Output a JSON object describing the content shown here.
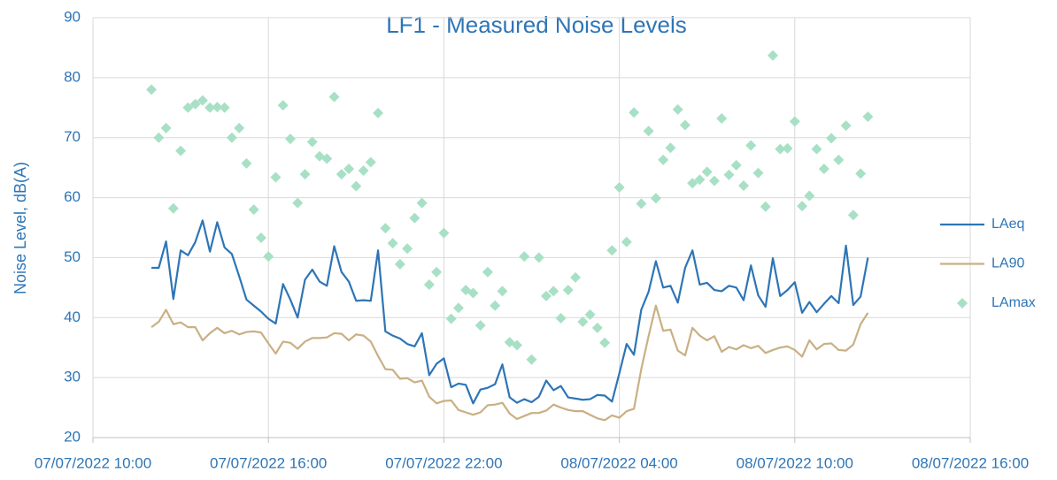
{
  "chart_data": {
    "type": "line",
    "title": "LF1 - Measured Noise Levels",
    "y_label": "Noise Level, dB(A)",
    "ylim": [
      20,
      90
    ],
    "yticks": [
      20,
      30,
      40,
      50,
      60,
      70,
      80,
      90
    ],
    "xlim": [
      "07/07/2022 10:00",
      "08/07/2022 16:00"
    ],
    "xticks": [
      "07/07/2022 10:00",
      "07/07/2022 16:00",
      "07/07/2022 22:00",
      "08/07/2022 04:00",
      "08/07/2022 10:00",
      "08/07/2022 16:00"
    ],
    "grid": true,
    "legend": "right",
    "x": [
      "07/07/2022 12:00",
      "07/07/2022 12:15",
      "07/07/2022 12:30",
      "07/07/2022 12:45",
      "07/07/2022 13:00",
      "07/07/2022 13:15",
      "07/07/2022 13:30",
      "07/07/2022 13:45",
      "07/07/2022 14:00",
      "07/07/2022 14:15",
      "07/07/2022 14:30",
      "07/07/2022 14:45",
      "07/07/2022 15:00",
      "07/07/2022 15:15",
      "07/07/2022 15:30",
      "07/07/2022 15:45",
      "07/07/2022 16:00",
      "07/07/2022 16:15",
      "07/07/2022 16:30",
      "07/07/2022 16:45",
      "07/07/2022 17:00",
      "07/07/2022 17:15",
      "07/07/2022 17:30",
      "07/07/2022 17:45",
      "07/07/2022 18:00",
      "07/07/2022 18:15",
      "07/07/2022 18:30",
      "07/07/2022 18:45",
      "07/07/2022 19:00",
      "07/07/2022 19:15",
      "07/07/2022 19:30",
      "07/07/2022 19:45",
      "07/07/2022 20:00",
      "07/07/2022 20:15",
      "07/07/2022 20:30",
      "07/07/2022 20:45",
      "07/07/2022 21:00",
      "07/07/2022 21:15",
      "07/07/2022 21:30",
      "07/07/2022 21:45",
      "07/07/2022 22:00",
      "07/07/2022 22:15",
      "07/07/2022 22:30",
      "07/07/2022 22:45",
      "07/07/2022 23:00",
      "07/07/2022 23:15",
      "07/07/2022 23:30",
      "07/07/2022 23:45",
      "08/07/2022 00:00",
      "08/07/2022 00:15",
      "08/07/2022 00:30",
      "08/07/2022 00:45",
      "08/07/2022 01:00",
      "08/07/2022 01:15",
      "08/07/2022 01:30",
      "08/07/2022 01:45",
      "08/07/2022 02:00",
      "08/07/2022 02:15",
      "08/07/2022 02:30",
      "08/07/2022 02:45",
      "08/07/2022 03:00",
      "08/07/2022 03:15",
      "08/07/2022 03:30",
      "08/07/2022 03:45",
      "08/07/2022 04:00",
      "08/07/2022 04:15",
      "08/07/2022 04:30",
      "08/07/2022 04:45",
      "08/07/2022 05:00",
      "08/07/2022 05:15",
      "08/07/2022 05:30",
      "08/07/2022 05:45",
      "08/07/2022 06:00",
      "08/07/2022 06:15",
      "08/07/2022 06:30",
      "08/07/2022 06:45",
      "08/07/2022 07:00",
      "08/07/2022 07:15",
      "08/07/2022 07:30",
      "08/07/2022 07:45",
      "08/07/2022 08:00",
      "08/07/2022 08:15",
      "08/07/2022 08:30",
      "08/07/2022 08:45",
      "08/07/2022 09:00",
      "08/07/2022 09:15",
      "08/07/2022 09:30",
      "08/07/2022 09:45",
      "08/07/2022 10:00",
      "08/07/2022 10:15",
      "08/07/2022 10:30",
      "08/07/2022 10:45",
      "08/07/2022 11:00",
      "08/07/2022 11:15",
      "08/07/2022 11:30",
      "08/07/2022 11:45",
      "08/07/2022 12:00",
      "08/07/2022 12:15",
      "08/07/2022 12:30"
    ],
    "series": [
      {
        "name": "LAeq",
        "color": "#2e75b6",
        "style": "line",
        "values": [
          48.3,
          48.3,
          52.7,
          43.1,
          51.2,
          50.4,
          52.6,
          56.2,
          51,
          55.9,
          51.7,
          50.6,
          46.9,
          43,
          42,
          41,
          39.8,
          39,
          45.6,
          43,
          40,
          46.3,
          48,
          46,
          45.3,
          51.9,
          47.6,
          46,
          42.8,
          42.9,
          42.8,
          51.2,
          37.7,
          37,
          36.5,
          35.6,
          35.2,
          37.4,
          30.4,
          32.3,
          33.2,
          28.4,
          29,
          28.8,
          25.7,
          28,
          28.3,
          28.9,
          32.2,
          26.7,
          25.8,
          26.4,
          25.9,
          26.8,
          29.5,
          27.9,
          28.6,
          26.7,
          26.5,
          26.3,
          26.4,
          27.1,
          27,
          26,
          30.7,
          35.6,
          33.8,
          41.3,
          44.3,
          49.4,
          45,
          45.3,
          42.5,
          48.3,
          51.2,
          45.5,
          45.8,
          44.6,
          44.4,
          45.3,
          45,
          42.9,
          48.7,
          43.7,
          41.8,
          49.9,
          43.6,
          44.6,
          45.9,
          40.8,
          42.6,
          40.9,
          42.3,
          43.6,
          42.4,
          52,
          42.1,
          43.5,
          50
        ]
      },
      {
        "name": "LA90",
        "color": "#c9b084",
        "style": "line",
        "values": [
          38.4,
          39.3,
          41.3,
          38.9,
          39.2,
          38.4,
          38.4,
          36.2,
          37.4,
          38.3,
          37.4,
          37.8,
          37.2,
          37.6,
          37.7,
          37.5,
          35.7,
          34,
          36,
          35.8,
          34.8,
          36,
          36.6,
          36.6,
          36.7,
          37.4,
          37.3,
          36.2,
          37.2,
          37,
          36,
          33.6,
          31.4,
          31.3,
          29.8,
          29.9,
          29.2,
          29.5,
          26.8,
          25.7,
          26.1,
          26.2,
          24.6,
          24.2,
          23.8,
          24.2,
          25.4,
          25.5,
          25.8,
          24,
          23.1,
          23.6,
          24.1,
          24.1,
          24.5,
          25.5,
          25,
          24.6,
          24.4,
          24.4,
          23.8,
          23.2,
          22.9,
          23.7,
          23.3,
          24.4,
          24.8,
          31.4,
          36.9,
          42,
          37.8,
          38,
          34.5,
          33.7,
          38.3,
          37,
          36.2,
          36.9,
          34.3,
          35.1,
          34.7,
          35.4,
          34.9,
          35.3,
          34.1,
          34.6,
          35,
          35.2,
          34.6,
          33.5,
          36.2,
          34.7,
          35.6,
          35.7,
          34.6,
          34.5,
          35.5,
          38.9,
          40.8
        ]
      },
      {
        "name": "LAmax",
        "color": "#a8e0c6",
        "style": "marker",
        "values": [
          78,
          70,
          71.6,
          58.2,
          67.8,
          75,
          75.6,
          76.2,
          75,
          75.1,
          75,
          70,
          71.6,
          65.7,
          58,
          53.3,
          50.2,
          63.4,
          75.4,
          69.8,
          59.1,
          63.9,
          69.3,
          66.9,
          66.5,
          76.8,
          63.9,
          64.8,
          61.9,
          64.5,
          65.9,
          74.1,
          54.9,
          52.4,
          48.9,
          51.5,
          56.6,
          59.1,
          45.5,
          47.6,
          54.1,
          39.8,
          41.6,
          44.6,
          44.1,
          38.7,
          47.6,
          42,
          44.4,
          35.9,
          35.4,
          50.2,
          33,
          50,
          43.6,
          44.4,
          39.9,
          44.6,
          46.7,
          39.3,
          40.5,
          38.3,
          35.8,
          51.2,
          61.7,
          52.6,
          74.2,
          59,
          71.1,
          59.9,
          66.3,
          68.3,
          74.7,
          72.1,
          62.4,
          63,
          64.3,
          62.8,
          73.2,
          63.8,
          65.4,
          62,
          68.7,
          64.1,
          58.5,
          83.7,
          68.1,
          68.2,
          72.7,
          58.6,
          60.3,
          68.1,
          64.8,
          69.9,
          66.3,
          72,
          57.1,
          64,
          73.5
        ]
      }
    ]
  }
}
